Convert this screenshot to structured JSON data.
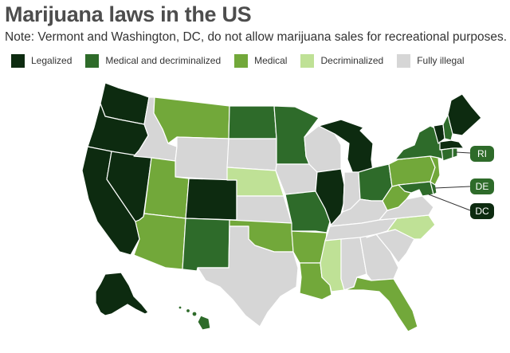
{
  "title": "Marijuana laws in the US",
  "note": "Note: Vermont and Washington, DC, do not allow marijuana sales for recreational purposes.",
  "legend": [
    {
      "label": "Legalized",
      "color": "#0d2b10"
    },
    {
      "label": "Medical and decriminalized",
      "color": "#2e6b2a"
    },
    {
      "label": "Medical",
      "color": "#72a83a"
    },
    {
      "label": "Decriminalized",
      "color": "#bfe196"
    },
    {
      "label": "Fully illegal",
      "color": "#d6d6d6"
    }
  ],
  "callouts": {
    "ri": {
      "label": "RI",
      "color": "#2e6b2a"
    },
    "de": {
      "label": "DE",
      "color": "#2e6b2a"
    },
    "dc": {
      "label": "DC",
      "color": "#0d2b10"
    }
  },
  "states": {
    "WA": "legal",
    "OR": "legal",
    "CA": "legal",
    "NV": "legal",
    "CO": "legal",
    "AK": "legal",
    "MI": "legal",
    "IL": "legal",
    "MA": "legal",
    "ME": "legal",
    "VT": "legal",
    "ND": "meddecrim",
    "MN": "meddecrim",
    "NM": "meddecrim",
    "MO": "meddecrim",
    "OH": "meddecrim",
    "NY": "meddecrim",
    "MD": "meddecrim",
    "NH": "meddecrim",
    "CT": "meddecrim",
    "HI": "meddecrim",
    "RI": "meddecrim",
    "DE": "meddecrim",
    "MT": "medical",
    "UT": "medical",
    "AZ": "medical",
    "OK": "medical",
    "AR": "medical",
    "LA": "medical",
    "FL": "medical",
    "PA": "medical",
    "WV": "medical",
    "NJ": "medical",
    "NE": "decrim",
    "MS": "decrim",
    "NC": "decrim",
    "ID": "illegal",
    "WY": "illegal",
    "SD": "illegal",
    "KS": "illegal",
    "TX": "illegal",
    "IA": "illegal",
    "WI": "illegal",
    "IN": "illegal",
    "KY": "illegal",
    "TN": "illegal",
    "AL": "illegal",
    "GA": "illegal",
    "SC": "illegal",
    "VA": "illegal"
  }
}
